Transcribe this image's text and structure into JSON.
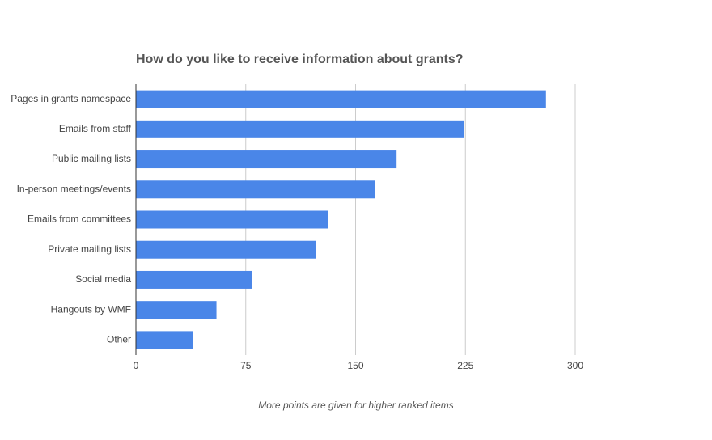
{
  "chart_data": {
    "type": "bar",
    "orientation": "horizontal",
    "title": "How do you like to receive information about grants?",
    "xlabel": "More points are given for higher ranked items",
    "categories": [
      "Pages in grants namespace",
      "Emails from staff",
      "Public mailing lists",
      "In-person meetings/events",
      "Emails from committees",
      "Private mailing lists",
      "Social media",
      "Hangouts by WMF",
      "Other"
    ],
    "values": [
      280,
      224,
      178,
      163,
      131,
      123,
      79,
      55,
      39
    ],
    "color": "#4a86e8",
    "xlim": [
      0,
      300
    ],
    "xticks": [
      0,
      75,
      150,
      225,
      300
    ],
    "grid": true
  }
}
